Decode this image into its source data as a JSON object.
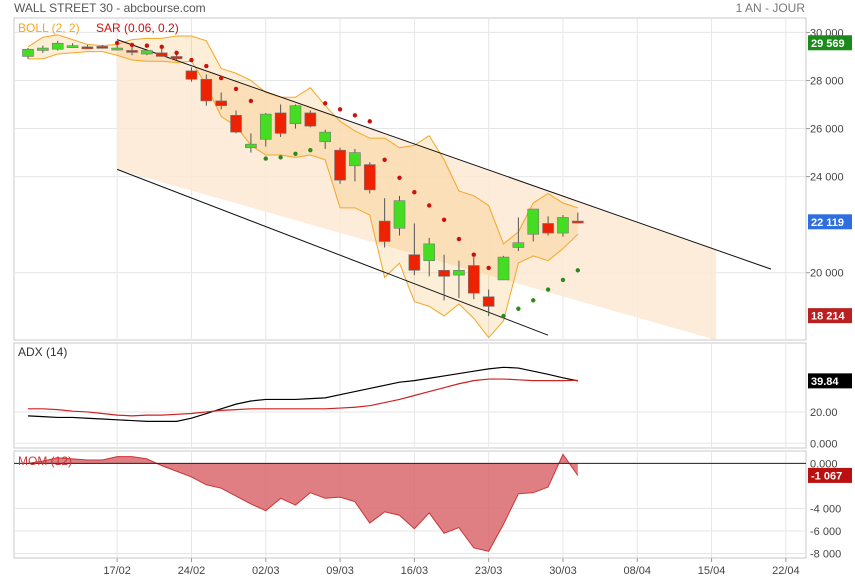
{
  "header": {
    "title": "WALL STREET 30 - abcbourse.com",
    "period": "1 AN - JOUR"
  },
  "colors": {
    "up": "#44dd22",
    "down": "#ee2200",
    "boll": "#f5a623",
    "boll_fill": "#fde9d4",
    "sar_up": "#2e8b1a",
    "sar_down": "#cc1111",
    "adx": "#000000",
    "adx_signal": "#cc2222",
    "mom_fill": "#d9696d",
    "mom_line": "#cc3333",
    "badge_last": "#1a8a1a",
    "badge_cur": "#2f6ee0",
    "badge_low": "#bb2020",
    "badge_adx": "#000000",
    "badge_mom": "#bb1010"
  },
  "chart_data": [
    {
      "type": "candlestick",
      "legend": [
        {
          "label": "BOLL (2, 2)",
          "color": "#f5a623"
        },
        {
          "label": "SAR (0.06, 0.2)",
          "color": "#cc1111"
        }
      ],
      "x_tick_labels": [
        "17/02",
        "24/02",
        "02/03",
        "09/03",
        "16/03",
        "23/03",
        "30/03",
        "08/04",
        "15/04",
        "22/04"
      ],
      "x_tick_index": [
        6,
        11,
        16,
        21,
        26,
        31,
        36,
        41,
        46,
        51
      ],
      "ylim": [
        17200,
        30600
      ],
      "y_ticks": [
        30000,
        28000,
        26000,
        24000,
        20000
      ],
      "y_tick_labels": [
        "30 000",
        "28 000",
        "26 000",
        "24 000",
        "20 000"
      ],
      "badges": [
        {
          "label": "29 569",
          "value": 29569,
          "color_key": "badge_last"
        },
        {
          "label": "22 119",
          "value": 22119,
          "color_key": "badge_cur"
        },
        {
          "label": "18 214",
          "value": 18214,
          "color_key": "badge_low"
        }
      ],
      "ohlc": [
        {
          "i": 0,
          "o": 29000,
          "h": 29350,
          "l": 28900,
          "c": 29300
        },
        {
          "i": 1,
          "o": 29250,
          "h": 29450,
          "l": 29150,
          "c": 29350
        },
        {
          "i": 2,
          "o": 29300,
          "h": 29650,
          "l": 29250,
          "c": 29550
        },
        {
          "i": 3,
          "o": 29400,
          "h": 29550,
          "l": 29350,
          "c": 29450
        },
        {
          "i": 4,
          "o": 29400,
          "h": 29480,
          "l": 29320,
          "c": 29360
        },
        {
          "i": 5,
          "o": 29420,
          "h": 29480,
          "l": 29330,
          "c": 29380
        },
        {
          "i": 6,
          "o": 29300,
          "h": 29500,
          "l": 29250,
          "c": 29350
        },
        {
          "i": 7,
          "o": 29250,
          "h": 29500,
          "l": 29050,
          "c": 29180
        },
        {
          "i": 8,
          "o": 29100,
          "h": 29300,
          "l": 29050,
          "c": 29250
        },
        {
          "i": 9,
          "o": 29150,
          "h": 29350,
          "l": 29000,
          "c": 29000
        },
        {
          "i": 10,
          "o": 29000,
          "h": 29100,
          "l": 28850,
          "c": 28900
        },
        {
          "i": 11,
          "o": 28400,
          "h": 28550,
          "l": 27950,
          "c": 28050
        },
        {
          "i": 12,
          "o": 28050,
          "h": 28250,
          "l": 26950,
          "c": 27150
        },
        {
          "i": 13,
          "o": 27150,
          "h": 27500,
          "l": 26800,
          "c": 26950
        },
        {
          "i": 14,
          "o": 26550,
          "h": 26750,
          "l": 25800,
          "c": 25850
        },
        {
          "i": 15,
          "o": 25200,
          "h": 25800,
          "l": 25000,
          "c": 25350
        },
        {
          "i": 16,
          "o": 25550,
          "h": 26650,
          "l": 25250,
          "c": 26600
        },
        {
          "i": 17,
          "o": 26650,
          "h": 27000,
          "l": 25650,
          "c": 25800
        },
        {
          "i": 18,
          "o": 26200,
          "h": 27000,
          "l": 26000,
          "c": 26950
        },
        {
          "i": 19,
          "o": 26650,
          "h": 26750,
          "l": 26050,
          "c": 26100
        },
        {
          "i": 20,
          "o": 25450,
          "h": 25950,
          "l": 25150,
          "c": 25850
        },
        {
          "i": 21,
          "o": 25100,
          "h": 25200,
          "l": 23700,
          "c": 23850
        },
        {
          "i": 22,
          "o": 24450,
          "h": 25150,
          "l": 23800,
          "c": 25000
        },
        {
          "i": 23,
          "o": 24500,
          "h": 24600,
          "l": 23300,
          "c": 23450
        },
        {
          "i": 24,
          "o": 22150,
          "h": 23100,
          "l": 21050,
          "c": 21300
        },
        {
          "i": 25,
          "o": 21850,
          "h": 23200,
          "l": 21550,
          "c": 23000
        },
        {
          "i": 26,
          "o": 20750,
          "h": 22050,
          "l": 19900,
          "c": 20100
        },
        {
          "i": 27,
          "o": 20500,
          "h": 21450,
          "l": 19850,
          "c": 21200
        },
        {
          "i": 28,
          "o": 20100,
          "h": 20750,
          "l": 18850,
          "c": 19850
        },
        {
          "i": 29,
          "o": 19900,
          "h": 20500,
          "l": 18950,
          "c": 20100
        },
        {
          "i": 30,
          "o": 20300,
          "h": 20650,
          "l": 18900,
          "c": 19150
        },
        {
          "i": 31,
          "o": 19000,
          "h": 19300,
          "l": 18200,
          "c": 18600
        },
        {
          "i": 32,
          "o": 19700,
          "h": 20700,
          "l": 19700,
          "c": 20650
        },
        {
          "i": 33,
          "o": 21050,
          "h": 22300,
          "l": 20900,
          "c": 21250
        },
        {
          "i": 34,
          "o": 21600,
          "h": 22600,
          "l": 21300,
          "c": 22650
        },
        {
          "i": 35,
          "o": 22050,
          "h": 22350,
          "l": 21550,
          "c": 21650
        },
        {
          "i": 36,
          "o": 21650,
          "h": 22400,
          "l": 21500,
          "c": 22300
        },
        {
          "i": 37,
          "o": 22150,
          "h": 22500,
          "l": 22100,
          "c": 22119
        }
      ],
      "boll_upper": [
        29400,
        29800,
        29900,
        29700,
        29500,
        29450,
        29500,
        29700,
        29750,
        29750,
        29850,
        29850,
        29650,
        28500,
        28300,
        28000,
        27500,
        27300,
        27300,
        27700,
        26950,
        26300,
        25900,
        25600,
        25600,
        25200,
        25300,
        25700,
        24700,
        23400,
        23200,
        22800,
        21200,
        21700,
        22900,
        23300,
        22900,
        22700
      ],
      "boll_lower": [
        28900,
        28900,
        29100,
        29150,
        29200,
        29200,
        29050,
        28850,
        28800,
        28800,
        28750,
        28800,
        27800,
        26500,
        26100,
        25300,
        24900,
        24900,
        24800,
        24900,
        24700,
        22700,
        22700,
        22400,
        19800,
        20400,
        18800,
        18600,
        18200,
        18700,
        18100,
        17300,
        18000,
        20400,
        20700,
        20500,
        21000,
        21600
      ],
      "channel": [
        {
          "label": "upper",
          "p1": {
            "i": 6,
            "v": 29700
          },
          "p2": {
            "i": 50,
            "v": 20150
          }
        },
        {
          "label": "lower",
          "p1": {
            "i": 6,
            "v": 24300
          },
          "p2": {
            "i": 35,
            "v": 17400
          }
        }
      ],
      "sar": [
        {
          "i": 6,
          "v": 29560,
          "dir": "down"
        },
        {
          "i": 7,
          "v": 29480,
          "dir": "down"
        },
        {
          "i": 8,
          "v": 29450,
          "dir": "down"
        },
        {
          "i": 9,
          "v": 29400,
          "dir": "down"
        },
        {
          "i": 10,
          "v": 29150,
          "dir": "down"
        },
        {
          "i": 11,
          "v": 28850,
          "dir": "down"
        },
        {
          "i": 12,
          "v": 28600,
          "dir": "down"
        },
        {
          "i": 13,
          "v": 28100,
          "dir": "down"
        },
        {
          "i": 14,
          "v": 27650,
          "dir": "down"
        },
        {
          "i": 15,
          "v": 27150,
          "dir": "down"
        },
        {
          "i": 16,
          "v": 24750,
          "dir": "up"
        },
        {
          "i": 17,
          "v": 24800,
          "dir": "up"
        },
        {
          "i": 18,
          "v": 24950,
          "dir": "up"
        },
        {
          "i": 19,
          "v": 25100,
          "dir": "up"
        },
        {
          "i": 20,
          "v": 27050,
          "dir": "down"
        },
        {
          "i": 21,
          "v": 26800,
          "dir": "down"
        },
        {
          "i": 22,
          "v": 26550,
          "dir": "down"
        },
        {
          "i": 23,
          "v": 26300,
          "dir": "down"
        },
        {
          "i": 24,
          "v": 24700,
          "dir": "down"
        },
        {
          "i": 25,
          "v": 23950,
          "dir": "down"
        },
        {
          "i": 26,
          "v": 23350,
          "dir": "down"
        },
        {
          "i": 27,
          "v": 22800,
          "dir": "down"
        },
        {
          "i": 28,
          "v": 22200,
          "dir": "down"
        },
        {
          "i": 29,
          "v": 21400,
          "dir": "down"
        },
        {
          "i": 30,
          "v": 20750,
          "dir": "down"
        },
        {
          "i": 31,
          "v": 20200,
          "dir": "down"
        },
        {
          "i": 32,
          "v": 18200,
          "dir": "up"
        },
        {
          "i": 33,
          "v": 18500,
          "dir": "up"
        },
        {
          "i": 34,
          "v": 18850,
          "dir": "up"
        },
        {
          "i": 35,
          "v": 19300,
          "dir": "up"
        },
        {
          "i": 36,
          "v": 19700,
          "dir": "up"
        },
        {
          "i": 37,
          "v": 20100,
          "dir": "up"
        }
      ]
    },
    {
      "type": "line",
      "title": "ADX (14)",
      "ylim": [
        -3,
        64
      ],
      "y_ticks": [
        20,
        0
      ],
      "y_tick_labels": [
        "20.00",
        "0.000"
      ],
      "badge": {
        "label": "39.84",
        "value": 39.84,
        "color_key": "badge_adx"
      },
      "series": [
        {
          "color_key": "adx",
          "values": [
            [
              0,
              17.5
            ],
            [
              1,
              17
            ],
            [
              2,
              16.5
            ],
            [
              3,
              16.5
            ],
            [
              4,
              16
            ],
            [
              5,
              15.5
            ],
            [
              6,
              15
            ],
            [
              7,
              14.5
            ],
            [
              8,
              14
            ],
            [
              9,
              14
            ],
            [
              10,
              14
            ],
            [
              11,
              16
            ],
            [
              12,
              19
            ],
            [
              13,
              22
            ],
            [
              14,
              25
            ],
            [
              15,
              27
            ],
            [
              16,
              28
            ],
            [
              17,
              28
            ],
            [
              18,
              28
            ],
            [
              19,
              28.5
            ],
            [
              20,
              29
            ],
            [
              21,
              31
            ],
            [
              22,
              33
            ],
            [
              23,
              35
            ],
            [
              24,
              37
            ],
            [
              25,
              39
            ],
            [
              26,
              40
            ],
            [
              27,
              41.5
            ],
            [
              28,
              43
            ],
            [
              29,
              44.5
            ],
            [
              30,
              46
            ],
            [
              31,
              47.5
            ],
            [
              32,
              48.5
            ],
            [
              33,
              48
            ],
            [
              34,
              46
            ],
            [
              35,
              44
            ],
            [
              36,
              41.8
            ],
            [
              37,
              39.84
            ]
          ]
        },
        {
          "color_key": "adx_signal",
          "values": [
            [
              0,
              22
            ],
            [
              1,
              22
            ],
            [
              2,
              21.5
            ],
            [
              3,
              20.5
            ],
            [
              4,
              20
            ],
            [
              5,
              19
            ],
            [
              6,
              18
            ],
            [
              7,
              17.5
            ],
            [
              8,
              18
            ],
            [
              9,
              18
            ],
            [
              10,
              18.5
            ],
            [
              11,
              19
            ],
            [
              12,
              20
            ],
            [
              13,
              21
            ],
            [
              14,
              21.5
            ],
            [
              15,
              22
            ],
            [
              16,
              22
            ],
            [
              17,
              22
            ],
            [
              18,
              22
            ],
            [
              19,
              22
            ],
            [
              20,
              22
            ],
            [
              21,
              22.5
            ],
            [
              22,
              23
            ],
            [
              23,
              24
            ],
            [
              24,
              26
            ],
            [
              25,
              28
            ],
            [
              26,
              30.5
            ],
            [
              27,
              33
            ],
            [
              28,
              35.5
            ],
            [
              29,
              38
            ],
            [
              30,
              40
            ],
            [
              31,
              41
            ],
            [
              32,
              41
            ],
            [
              33,
              40.5
            ],
            [
              34,
              40
            ],
            [
              35,
              40
            ],
            [
              36,
              40
            ],
            [
              37,
              40.2
            ]
          ]
        }
      ]
    },
    {
      "type": "area",
      "title": "MOM (12)",
      "ylim": [
        -8400,
        1100
      ],
      "y_ticks": [
        0,
        -4000,
        -6000,
        -8000
      ],
      "y_tick_labels": [
        "0.000",
        "-4 000",
        "-6 000",
        "-8 000"
      ],
      "badge": {
        "label": "-1 067",
        "value": -1067,
        "color_key": "badge_mom"
      },
      "values": [
        [
          0,
          0
        ],
        [
          1,
          200
        ],
        [
          2,
          500
        ],
        [
          3,
          400
        ],
        [
          4,
          300
        ],
        [
          5,
          300
        ],
        [
          6,
          600
        ],
        [
          7,
          600
        ],
        [
          8,
          400
        ],
        [
          9,
          -200
        ],
        [
          10,
          -700
        ],
        [
          11,
          -1200
        ],
        [
          12,
          -1900
        ],
        [
          13,
          -2200
        ],
        [
          14,
          -2900
        ],
        [
          15,
          -3600
        ],
        [
          16,
          -4200
        ],
        [
          17,
          -3100
        ],
        [
          18,
          -3700
        ],
        [
          19,
          -2600
        ],
        [
          20,
          -3100
        ],
        [
          21,
          -3000
        ],
        [
          22,
          -3400
        ],
        [
          23,
          -5300
        ],
        [
          24,
          -4300
        ],
        [
          25,
          -4600
        ],
        [
          26,
          -5800
        ],
        [
          27,
          -4400
        ],
        [
          28,
          -6200
        ],
        [
          29,
          -5700
        ],
        [
          30,
          -7500
        ],
        [
          31,
          -7800
        ],
        [
          32,
          -5400
        ],
        [
          33,
          -2700
        ],
        [
          34,
          -2600
        ],
        [
          35,
          -2100
        ],
        [
          36,
          800
        ],
        [
          37,
          -1067
        ]
      ]
    }
  ]
}
